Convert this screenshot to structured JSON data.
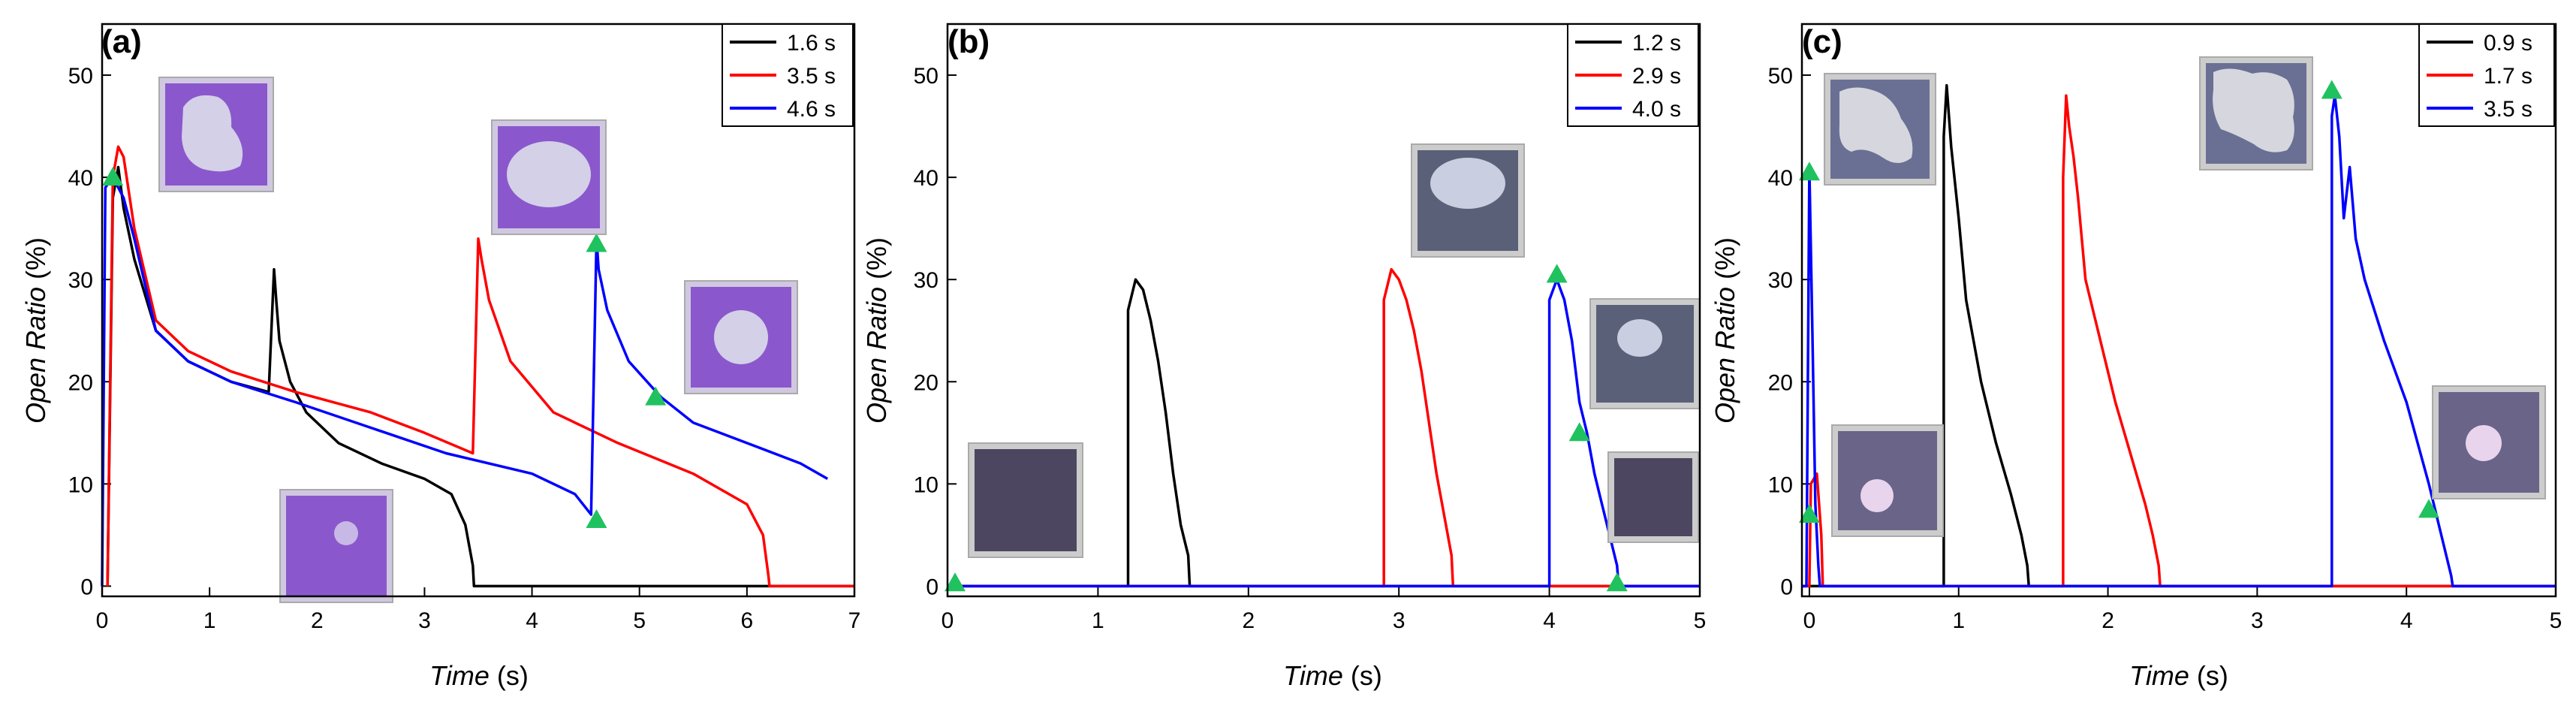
{
  "chart_data": [
    {
      "type": "line",
      "panel": "(a)",
      "xlabel": "Time",
      "xunit": " (s)",
      "ylabel": "Open Ratio",
      "yunit": " (%)",
      "xlim": [
        0,
        7
      ],
      "ylim": [
        -1,
        55
      ],
      "xticks": [
        0,
        1,
        2,
        3,
        4,
        5,
        6,
        7
      ],
      "yticks": [
        0,
        10,
        20,
        30,
        40,
        50
      ],
      "legend_position": "top-right",
      "series": [
        {
          "name": "1.6 s",
          "color": "#000000",
          "x": [
            0.05,
            0.1,
            0.15,
            0.2,
            0.3,
            0.5,
            0.8,
            1.2,
            1.55,
            1.6,
            1.62,
            1.65,
            1.75,
            1.9,
            2.2,
            2.6,
            3.0,
            3.25,
            3.38,
            3.45,
            3.46,
            7.0
          ],
          "y": [
            0,
            38,
            41,
            37,
            32,
            25,
            22,
            20,
            19,
            31,
            28,
            24,
            20,
            17,
            14,
            12,
            10.5,
            9,
            6,
            2,
            0,
            0
          ]
        },
        {
          "name": "3.5 s",
          "color": "#ff0000",
          "x": [
            0.05,
            0.1,
            0.15,
            0.2,
            0.3,
            0.5,
            0.8,
            1.2,
            1.8,
            2.5,
            3.0,
            3.45,
            3.5,
            3.53,
            3.6,
            3.8,
            4.2,
            4.8,
            5.5,
            6.0,
            6.15,
            6.2,
            6.21,
            7.0
          ],
          "y": [
            0,
            40,
            43,
            42,
            35,
            26,
            23,
            21,
            19,
            17,
            15,
            13,
            34,
            32,
            28,
            22,
            17,
            14,
            11,
            8,
            5,
            1,
            0,
            0
          ]
        },
        {
          "name": "4.6 s",
          "color": "#0000ff",
          "x": [
            0.0,
            0.03,
            0.1,
            0.2,
            0.3,
            0.5,
            0.8,
            1.2,
            1.8,
            2.5,
            3.2,
            4.0,
            4.4,
            4.55,
            4.6,
            4.62,
            4.7,
            4.9,
            5.2,
            5.5,
            6.0,
            6.5,
            6.75
          ],
          "y": [
            0,
            39,
            40,
            38,
            34,
            25,
            22,
            20,
            18,
            15.5,
            13,
            11,
            9,
            7,
            34,
            31,
            27,
            22,
            18.5,
            16,
            14,
            12,
            10.5
          ]
        }
      ],
      "markers": [
        {
          "x": 0.1,
          "y": 40
        },
        {
          "x": 4.6,
          "y": 6.5
        },
        {
          "x": 4.6,
          "y": 33.5
        },
        {
          "x": 5.15,
          "y": 18.5
        }
      ]
    },
    {
      "type": "line",
      "panel": "(b)",
      "xlabel": "Time",
      "xunit": " (s)",
      "ylabel": "Open Ratio",
      "yunit": " (%)",
      "xlim": [
        0,
        5
      ],
      "ylim": [
        -1,
        55
      ],
      "xticks": [
        0,
        1,
        2,
        3,
        4,
        5
      ],
      "yticks": [
        0,
        10,
        20,
        30,
        40,
        50
      ],
      "legend_position": "top-right",
      "series": [
        {
          "name": "1.2 s",
          "color": "#000000",
          "x": [
            0.0,
            1.2,
            1.2,
            1.25,
            1.3,
            1.35,
            1.4,
            1.45,
            1.5,
            1.55,
            1.6,
            1.61,
            5.0
          ],
          "y": [
            0,
            0,
            27,
            30,
            29,
            26,
            22,
            17,
            11,
            6,
            3,
            0,
            0
          ]
        },
        {
          "name": "2.9 s",
          "color": "#ff0000",
          "x": [
            0.0,
            2.9,
            2.9,
            2.95,
            3.0,
            3.05,
            3.1,
            3.15,
            3.2,
            3.25,
            3.3,
            3.35,
            3.36,
            5.0
          ],
          "y": [
            0,
            0,
            28,
            31,
            30,
            28,
            25,
            21,
            16,
            11,
            7,
            3,
            0,
            0
          ]
        },
        {
          "name": "4.0 s",
          "color": "#0000ff",
          "x": [
            0.0,
            4.0,
            4.0,
            4.05,
            4.1,
            4.15,
            4.2,
            4.25,
            4.3,
            4.35,
            4.4,
            4.45,
            4.46,
            5.0
          ],
          "y": [
            0,
            0,
            28,
            30,
            28,
            24,
            18,
            15,
            11,
            8,
            5,
            2,
            0,
            0
          ]
        }
      ],
      "markers": [
        {
          "x": 0.05,
          "y": 0.3
        },
        {
          "x": 4.05,
          "y": 30.5
        },
        {
          "x": 4.2,
          "y": 15
        },
        {
          "x": 4.45,
          "y": 0.3
        }
      ]
    },
    {
      "type": "line",
      "panel": "(c)",
      "xlabel": "Time",
      "xunit": " (s)",
      "ylabel": "Open Ratio",
      "yunit": " (%)",
      "xlim": [
        -0.05,
        5
      ],
      "ylim": [
        -1,
        55
      ],
      "xticks": [
        0,
        1,
        2,
        3,
        4,
        5
      ],
      "yticks": [
        0,
        10,
        20,
        30,
        40,
        50
      ],
      "legend_position": "top-right",
      "series": [
        {
          "name": "0.9 s",
          "color": "#000000",
          "x": [
            -0.05,
            0.9,
            0.9,
            0.92,
            0.95,
            1.0,
            1.05,
            1.15,
            1.25,
            1.35,
            1.42,
            1.46,
            1.47,
            5.0
          ],
          "y": [
            0,
            0,
            44,
            49,
            43,
            36,
            28,
            20,
            14,
            9,
            5,
            2,
            0,
            0
          ]
        },
        {
          "name": "1.7 s",
          "color": "#ff0000",
          "x": [
            -0.05,
            0.0,
            0.01,
            0.05,
            0.08,
            0.09,
            1.7,
            1.7,
            1.72,
            1.74,
            1.77,
            1.8,
            1.85,
            1.95,
            2.05,
            2.15,
            2.25,
            2.3,
            2.34,
            2.35,
            5.0
          ],
          "y": [
            0,
            0,
            10,
            11,
            5,
            0,
            0,
            40,
            48,
            45,
            42,
            38,
            30,
            24,
            18,
            13,
            8,
            5,
            2,
            0,
            0
          ]
        },
        {
          "name": "3.5 s",
          "color": "#0000ff",
          "x": [
            -0.05,
            -0.02,
            0.0,
            0.02,
            0.04,
            0.06,
            0.07,
            3.5,
            3.5,
            3.52,
            3.55,
            3.58,
            3.62,
            3.66,
            3.72,
            3.85,
            4.0,
            4.15,
            4.25,
            4.3,
            4.31,
            5.0
          ],
          "y": [
            0,
            0,
            41,
            25,
            8,
            2,
            0,
            0,
            46,
            48,
            44,
            36,
            41,
            34,
            30,
            24,
            18,
            10,
            4,
            1,
            0,
            0
          ]
        }
      ],
      "markers": [
        {
          "x": 0.0,
          "y": 40.5
        },
        {
          "x": 0.0,
          "y": 7
        },
        {
          "x": 3.5,
          "y": 48.5
        },
        {
          "x": 4.15,
          "y": 7.5
        }
      ]
    }
  ]
}
